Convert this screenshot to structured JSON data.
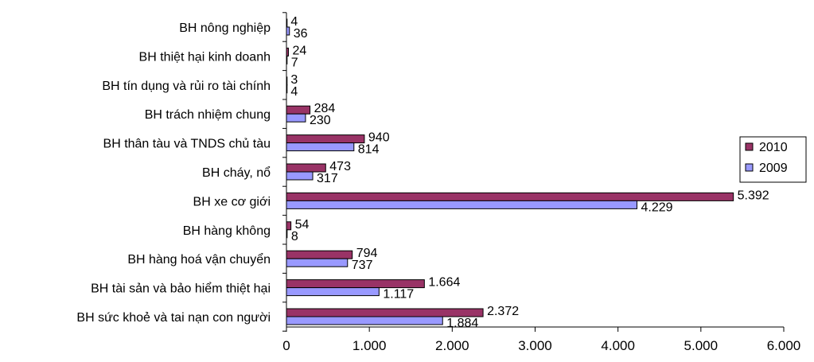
{
  "chart_data": {
    "type": "bar",
    "orientation": "horizontal",
    "title": "",
    "xlabel": "",
    "ylabel": "",
    "xlim": [
      0,
      6000
    ],
    "x_ticks": [
      0,
      1000,
      2000,
      3000,
      4000,
      5000,
      6000
    ],
    "x_tick_labels": [
      "0",
      "1.000",
      "2.000",
      "3.000",
      "4.000",
      "5.000",
      "6.000"
    ],
    "grid": false,
    "legend_position": "right",
    "categories": [
      "BH nông nghiệp",
      "BH thiệt hại kinh doanh",
      "BH tín dụng và rủi ro tài chính",
      "BH trách  nhiệm chung",
      "BH thân tàu và TNDS chủ tàu",
      "BH cháy, nổ",
      "BH xe cơ giới",
      "BH hàng không",
      "BH hàng hoá vận chuyển",
      "BH tài sản và bảo hiểm thiệt hại",
      "BH sức khoẻ và tai nạn con người"
    ],
    "series": [
      {
        "name": "2010",
        "color": "#993366",
        "values": [
          4,
          24,
          3,
          284,
          940,
          473,
          5392,
          54,
          794,
          1664,
          2372
        ],
        "labels": [
          "4",
          "24",
          "3",
          "284",
          "940",
          "473",
          "5.392",
          "54",
          "794",
          "1.664",
          "2.372"
        ]
      },
      {
        "name": "2009",
        "color": "#9999ff",
        "values": [
          36,
          7,
          4,
          230,
          814,
          317,
          4229,
          8,
          737,
          1117,
          1884
        ],
        "labels": [
          "36",
          "7",
          "4",
          "230",
          "814",
          "317",
          "4.229",
          "8",
          "737",
          "1.117",
          "1.884"
        ]
      }
    ]
  }
}
